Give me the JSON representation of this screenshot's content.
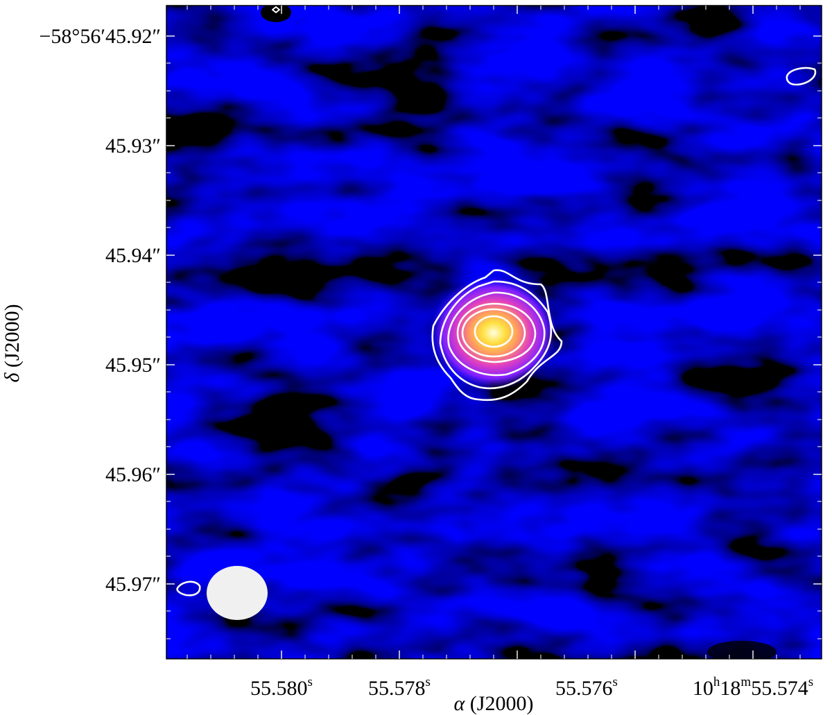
{
  "figure": {
    "type": "radio continuum image with contours",
    "colormap": [
      "#000000",
      "#0000ff",
      "#8000ff",
      "#ff40c0",
      "#ffd000",
      "#ffffe0"
    ],
    "contour_color": "#ffffff",
    "beam_color": "#f0f0f0"
  },
  "axes": {
    "xlabel_symbol": "α",
    "xlabel_text": " (J2000)",
    "ylabel_symbol": "δ",
    "ylabel_text": " (J2000)",
    "y_ticks": [
      {
        "value": "−58°56′45.92″"
      },
      {
        "value": "45.93″"
      },
      {
        "value": "45.94″"
      },
      {
        "value": "45.95″"
      },
      {
        "value": "45.96″"
      },
      {
        "value": "45.97″"
      }
    ],
    "x_ticks": [
      {
        "main": "55.580",
        "sup": "s"
      },
      {
        "main": "55.578",
        "sup": "s"
      },
      {
        "main": "55.576",
        "sup": "s"
      },
      {
        "prefix_h": "10",
        "sup_h": "h",
        "prefix_m": "18",
        "sup_m": "m",
        "main": "55.574",
        "sup": "s"
      }
    ]
  },
  "source": {
    "name": "central compact source",
    "contour_levels": 6,
    "peak_color": "#ffffe0"
  }
}
